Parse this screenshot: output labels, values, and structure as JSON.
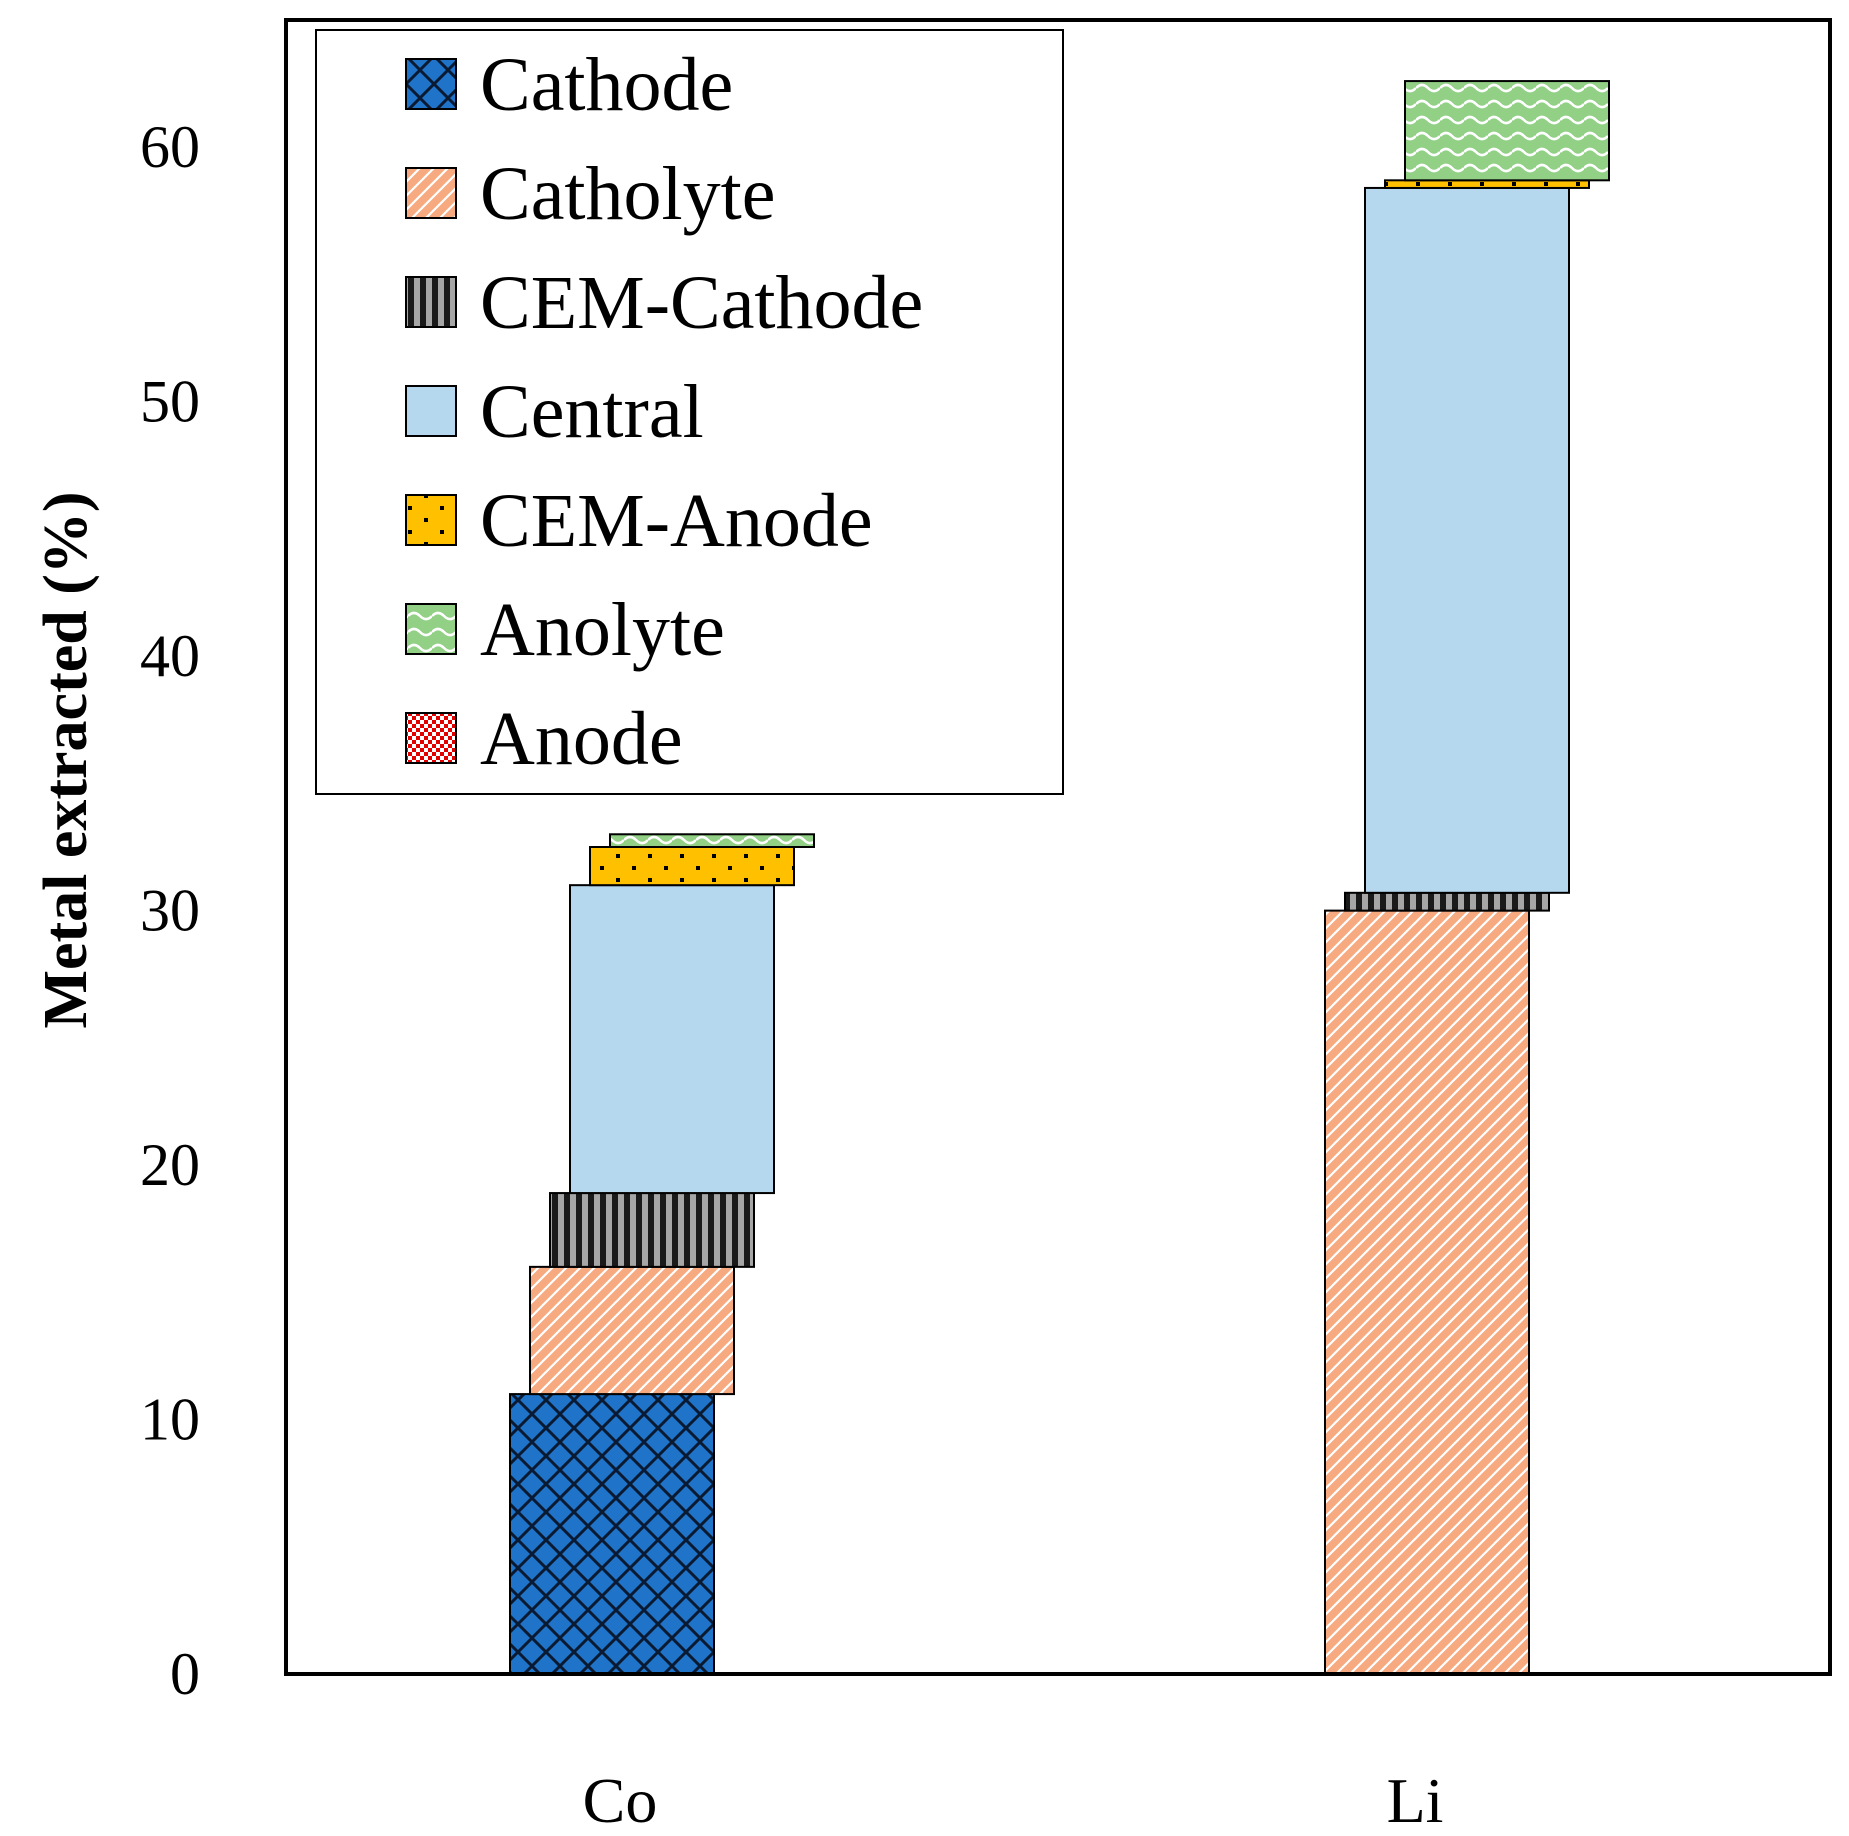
{
  "chart_data": {
    "type": "bar",
    "subtype": "waterfall-stacked",
    "title": "",
    "xlabel": "",
    "ylabel": "Metal extracted (%)",
    "ylim": [
      0,
      65
    ],
    "yticks": [
      0,
      10,
      20,
      30,
      40,
      50,
      60
    ],
    "grid": false,
    "legend_position": "top-left",
    "categories": [
      "Co",
      "Li"
    ],
    "series": [
      {
        "name": "Cathode",
        "key": "cathode",
        "color": "#1f74c9",
        "pattern": "diamond-grid",
        "values": [
          11.0,
          0.0
        ]
      },
      {
        "name": "Catholyte",
        "key": "catholyte",
        "color": "#f7aa80",
        "pattern": "diagonal",
        "values": [
          5.0,
          30.0
        ]
      },
      {
        "name": "CEM-Cathode",
        "key": "cem_cathode",
        "color": "#3a3a3a",
        "pattern": "vertical",
        "values": [
          2.9,
          0.7
        ]
      },
      {
        "name": "Central",
        "key": "central",
        "color": "#b5d8ef",
        "pattern": "solid",
        "values": [
          12.1,
          27.7
        ]
      },
      {
        "name": "CEM-Anode",
        "key": "cem_anode",
        "color": "#ffc000",
        "pattern": "dots",
        "values": [
          1.5,
          0.3
        ]
      },
      {
        "name": "Anolyte",
        "key": "anolyte",
        "color": "#92d086",
        "pattern": "wave",
        "values": [
          0.5,
          3.9
        ]
      },
      {
        "name": "Anode",
        "key": "anode",
        "color": "#e00000",
        "pattern": "checker",
        "values": [
          0.0,
          0.0
        ]
      }
    ]
  }
}
